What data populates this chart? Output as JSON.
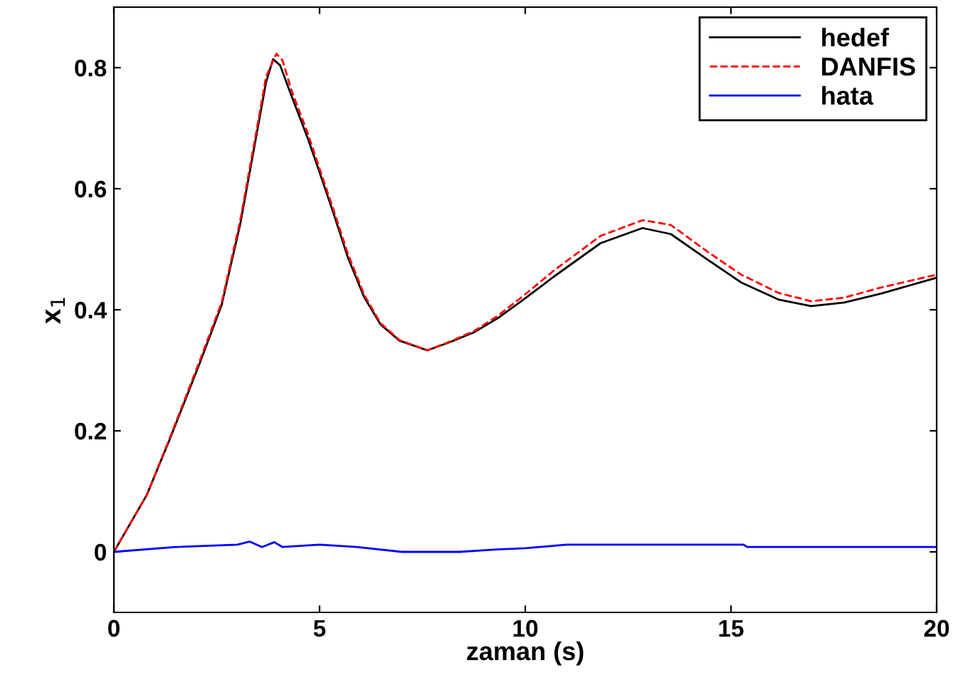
{
  "chart_data": {
    "type": "line",
    "xlabel": "zaman (s)",
    "ylabel": "x$_{1}$",
    "xlim": [
      0,
      20
    ],
    "ylim": [
      -0.1,
      0.9
    ],
    "xticks": [
      0,
      5,
      10,
      15,
      20
    ],
    "yticks": [
      0,
      0.2,
      0.4,
      0.6,
      0.8
    ],
    "grid": false,
    "legend": "top right",
    "series": [
      {
        "name": "hedef",
        "color": "#000000",
        "line_style": "solid",
        "x": [
          0,
          0.8,
          1.37,
          2.1,
          2.62,
          3.07,
          3.47,
          3.7,
          3.87,
          4.04,
          4.32,
          4.72,
          5.0,
          5.35,
          5.69,
          6.09,
          6.48,
          6.94,
          7.62,
          8.19,
          8.76,
          9.33,
          9.9,
          10.7,
          11.83,
          12.85,
          13.54,
          14.45,
          15.25,
          16.15,
          16.95,
          17.75,
          18.66,
          20
        ],
        "values": [
          0,
          0.094,
          0.188,
          0.314,
          0.408,
          0.541,
          0.69,
          0.776,
          0.814,
          0.804,
          0.753,
          0.682,
          0.627,
          0.557,
          0.486,
          0.42,
          0.376,
          0.349,
          0.333,
          0.347,
          0.363,
          0.386,
          0.414,
          0.455,
          0.51,
          0.535,
          0.525,
          0.482,
          0.445,
          0.417,
          0.406,
          0.412,
          0.427,
          0.453
        ]
      },
      {
        "name": "DANFIS",
        "color": "#ff0000",
        "line_style": "dashed",
        "x": [
          0,
          0.8,
          1.37,
          2.1,
          2.62,
          3.07,
          3.47,
          3.7,
          3.95,
          4.1,
          4.32,
          4.72,
          5.0,
          5.35,
          5.69,
          6.09,
          6.48,
          6.94,
          7.62,
          8.19,
          8.76,
          9.33,
          9.9,
          10.7,
          11.83,
          12.85,
          13.54,
          14.45,
          15.25,
          16.15,
          16.95,
          17.75,
          18.66,
          20
        ],
        "values": [
          0,
          0.094,
          0.19,
          0.318,
          0.412,
          0.547,
          0.697,
          0.785,
          0.823,
          0.812,
          0.762,
          0.69,
          0.633,
          0.563,
          0.492,
          0.424,
          0.378,
          0.35,
          0.333,
          0.348,
          0.365,
          0.39,
          0.42,
          0.465,
          0.522,
          0.548,
          0.54,
          0.495,
          0.458,
          0.428,
          0.414,
          0.42,
          0.437,
          0.458
        ]
      },
      {
        "name": "hata",
        "color": "#0000ff",
        "line_style": "solid",
        "x": [
          0,
          1.5,
          3.0,
          3.3,
          3.6,
          3.9,
          4.1,
          5.0,
          5.9,
          7.0,
          8.4,
          9.3,
          10.0,
          11.0,
          15.3,
          15.4,
          20
        ],
        "values": [
          0,
          0.008,
          0.012,
          0.017,
          0.008,
          0.016,
          0.008,
          0.012,
          0.008,
          0,
          0,
          0.004,
          0.006,
          0.012,
          0.012,
          0.008,
          0.008
        ]
      }
    ]
  }
}
